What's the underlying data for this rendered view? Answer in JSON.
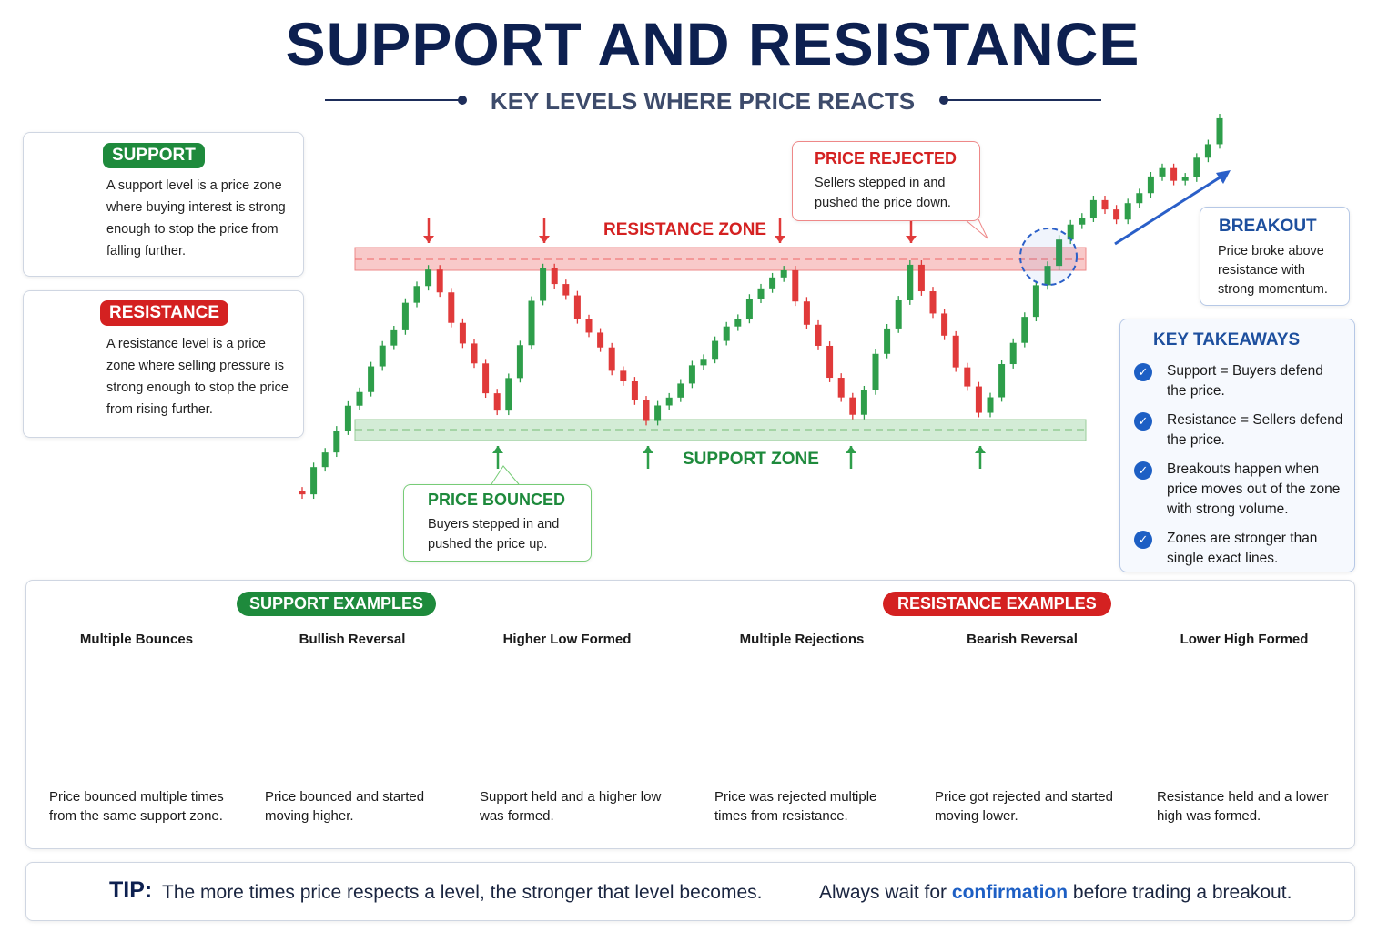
{
  "header": {
    "title": "SUPPORT AND RESISTANCE",
    "subtitle": "KEY LEVELS WHERE PRICE REACTS"
  },
  "cards": {
    "support": {
      "label": "SUPPORT",
      "text": "A support level is a price zone where buying interest is strong enough to stop the price from falling further."
    },
    "resistance": {
      "label": "RESISTANCE",
      "text": "A resistance level is a price zone where selling pressure is strong enough to stop the price from rising further."
    }
  },
  "main_chart": {
    "resistance_zone": "RESISTANCE ZONE",
    "support_zone": "SUPPORT ZONE",
    "rejected": {
      "title": "PRICE REJECTED",
      "text": "Sellers stepped in and pushed the price down."
    },
    "bounced": {
      "title": "PRICE BOUNCED",
      "text": "Buyers stepped in and pushed the price up."
    },
    "breakout": {
      "title": "BREAKOUT",
      "text": "Price broke above resistance with strong momentum."
    }
  },
  "takeaways": {
    "title": "KEY TAKEAWAYS",
    "items": [
      "Support = Buyers defend the price.",
      "Resistance = Sellers defend the price.",
      "Breakouts happen when price moves out of the zone with strong volume.",
      "Zones are stronger than single exact lines."
    ]
  },
  "examples": {
    "support": {
      "title": "SUPPORT EXAMPLES",
      "panels": [
        {
          "title": "Multiple Bounces",
          "caption": "Price bounced multiple times from the same support zone."
        },
        {
          "title": "Bullish Reversal",
          "caption": "Price bounced and started moving higher."
        },
        {
          "title": "Higher Low Formed",
          "caption": "Support held and a higher low was formed."
        }
      ]
    },
    "resistance": {
      "title": "RESISTANCE EXAMPLES",
      "panels": [
        {
          "title": "Multiple Rejections",
          "caption": "Price was rejected multiple times from resistance."
        },
        {
          "title": "Bearish Reversal",
          "caption": "Price got rejected and started moving lower."
        },
        {
          "title": "Lower High Formed",
          "caption": "Resistance held and a lower high was formed."
        }
      ]
    }
  },
  "tip": {
    "label": "TIP:",
    "text": "The more times price respects a level, the stronger that level becomes.",
    "before": "Always wait for",
    "link": "confirmation",
    "after": "before trading a breakout."
  }
}
